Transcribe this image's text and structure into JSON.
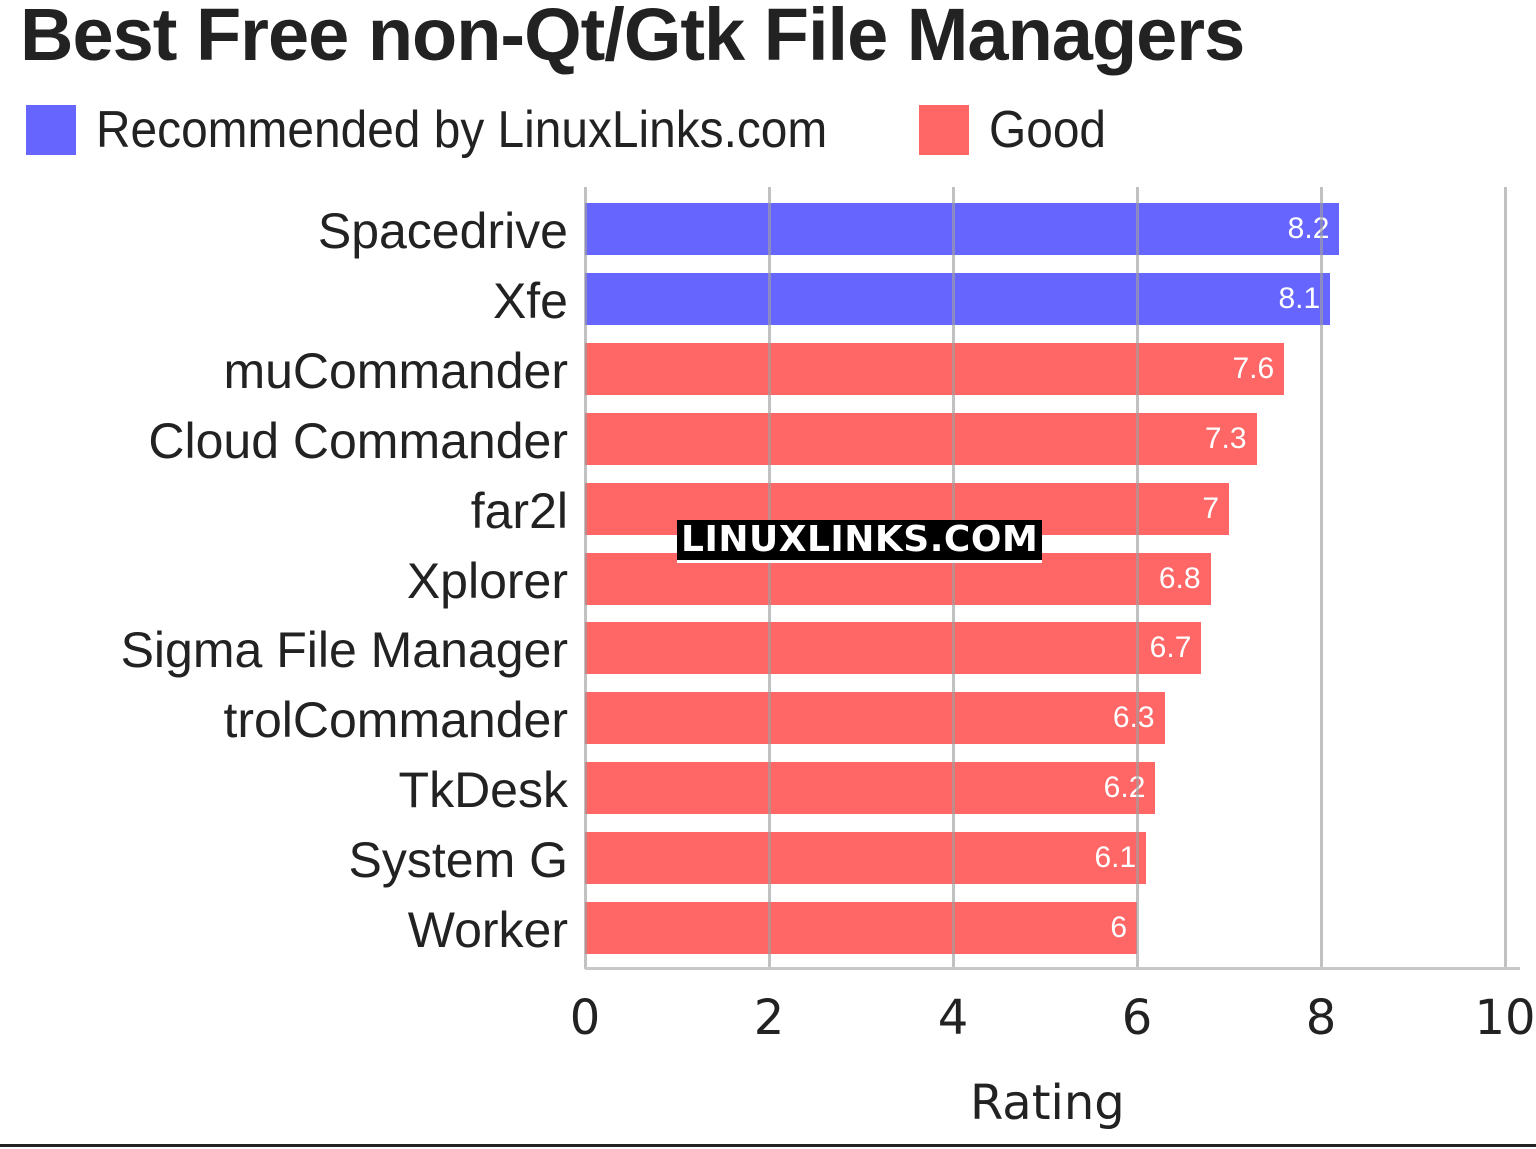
{
  "chart_data": {
    "type": "bar",
    "orientation": "horizontal",
    "title": "Best Free non-Qt/Gtk File Managers",
    "xlabel": "Rating",
    "ylabel": "",
    "xlim": [
      0,
      10
    ],
    "xticks": [
      0,
      2,
      4,
      6,
      8,
      10
    ],
    "grid": true,
    "legend_position": "top",
    "legend": [
      {
        "label": "Recommended by LinuxLinks.com",
        "color": "#6666ff"
      },
      {
        "label": "Good",
        "color": "#ff6666"
      }
    ],
    "categories": [
      "Spacedrive",
      "Xfe",
      "muCommander",
      "Cloud Commander",
      "far2l",
      "Xplorer",
      "Sigma File Manager",
      "trolCommander",
      "TkDesk",
      "System G",
      "Worker"
    ],
    "values": [
      8.2,
      8.1,
      7.6,
      7.3,
      7,
      6.8,
      6.7,
      6.3,
      6.2,
      6.1,
      6
    ],
    "series_membership": [
      "Recommended by LinuxLinks.com",
      "Recommended by LinuxLinks.com",
      "Good",
      "Good",
      "Good",
      "Good",
      "Good",
      "Good",
      "Good",
      "Good",
      "Good"
    ],
    "annotations": [
      "LINUXLINKS.COM"
    ]
  },
  "title": "Best Free non-Qt/Gtk File Managers",
  "legend": {
    "recommended": {
      "label": "Recommended by LinuxLinks.com",
      "color": "#6666ff"
    },
    "good": {
      "label": "Good",
      "color": "#ff6666"
    }
  },
  "xaxis": {
    "label": "Rating",
    "ticks": [
      "0",
      "2",
      "4",
      "6",
      "8",
      "10"
    ]
  },
  "watermark": "LINUXLINKS.COM",
  "bars": [
    {
      "name": "Spacedrive",
      "value": 8.2,
      "label": "8.2",
      "color": "#6666ff"
    },
    {
      "name": "Xfe",
      "value": 8.1,
      "label": "8.1",
      "color": "#6666ff"
    },
    {
      "name": "muCommander",
      "value": 7.6,
      "label": "7.6",
      "color": "#ff6666"
    },
    {
      "name": "Cloud Commander",
      "value": 7.3,
      "label": "7.3",
      "color": "#ff6666"
    },
    {
      "name": "far2l",
      "value": 7,
      "label": "7",
      "color": "#ff6666"
    },
    {
      "name": "Xplorer",
      "value": 6.8,
      "label": "6.8",
      "color": "#ff6666"
    },
    {
      "name": "Sigma File Manager",
      "value": 6.7,
      "label": "6.7",
      "color": "#ff6666"
    },
    {
      "name": "trolCommander",
      "value": 6.3,
      "label": "6.3",
      "color": "#ff6666"
    },
    {
      "name": "TkDesk",
      "value": 6.2,
      "label": "6.2",
      "color": "#ff6666"
    },
    {
      "name": "System G",
      "value": 6.1,
      "label": "6.1",
      "color": "#ff6666"
    },
    {
      "name": "Worker",
      "value": 6,
      "label": "6",
      "color": "#ff6666"
    }
  ]
}
